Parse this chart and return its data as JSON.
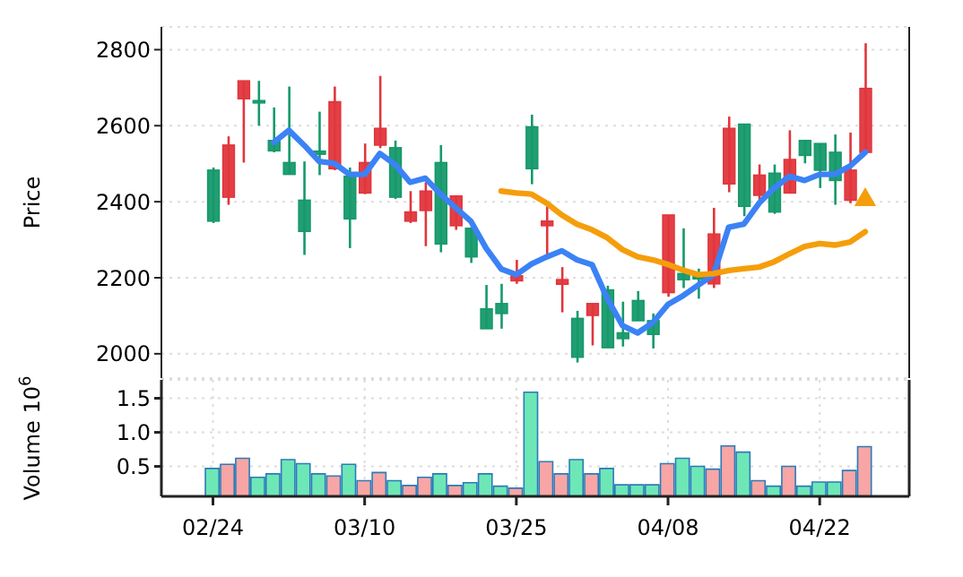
{
  "chart_data": [
    {
      "type": "candlestick",
      "ylabel": "Price",
      "categories": [
        null,
        null,
        null,
        null,
        null,
        null,
        null,
        null,
        null,
        null,
        null,
        null,
        null,
        null,
        null,
        null,
        null,
        null,
        null,
        null,
        null,
        null,
        null,
        null,
        null,
        null,
        null,
        null,
        null,
        null,
        null,
        null,
        null,
        null,
        null,
        null,
        null,
        null,
        null,
        null,
        null,
        null,
        null,
        null
      ],
      "ohlc": [
        [
          2349,
          2490,
          2344,
          2483
        ],
        [
          2549,
          2572,
          2392,
          2412
        ],
        [
          2718,
          2718,
          2503,
          2671
        ],
        [
          2660,
          2718,
          2600,
          2666
        ],
        [
          2534,
          2648,
          2530,
          2561
        ],
        [
          2472,
          2703,
          2472,
          2503
        ],
        [
          2322,
          2506,
          2260,
          2404
        ],
        [
          2525,
          2637,
          2470,
          2533
        ],
        [
          2663,
          2703,
          2483,
          2487
        ],
        [
          2355,
          2490,
          2278,
          2467
        ],
        [
          2503,
          2553,
          2420,
          2423
        ],
        [
          2593,
          2731,
          2541,
          2549
        ],
        [
          2412,
          2561,
          2407,
          2542
        ],
        [
          2373,
          2428,
          2344,
          2349
        ],
        [
          2428,
          2451,
          2283,
          2377
        ],
        [
          2289,
          2549,
          2267,
          2503
        ],
        [
          2415,
          2415,
          2326,
          2337
        ],
        [
          2255,
          2333,
          2239,
          2330
        ],
        [
          2066,
          2181,
          2066,
          2118
        ],
        [
          2106,
          2184,
          2066,
          2132
        ],
        [
          2205,
          2247,
          2184,
          2192
        ],
        [
          2487,
          2629,
          2446,
          2597
        ],
        [
          2349,
          2388,
          2255,
          2337
        ],
        [
          2195,
          2228,
          2109,
          2183
        ],
        [
          1991,
          2113,
          1977,
          2093
        ],
        [
          2132,
          2132,
          2022,
          2101
        ],
        [
          2016,
          2179,
          2016,
          2168
        ],
        [
          2040,
          2137,
          2019,
          2055
        ],
        [
          2087,
          2165,
          2087,
          2140
        ],
        [
          2051,
          2106,
          2014,
          2087
        ],
        [
          2365,
          2365,
          2150,
          2161
        ],
        [
          2195,
          2330,
          2173,
          2211
        ],
        [
          2197,
          2224,
          2145,
          2205
        ],
        [
          2315,
          2384,
          2173,
          2184
        ],
        [
          2593,
          2624,
          2425,
          2447
        ],
        [
          2388,
          2604,
          2362,
          2604
        ],
        [
          2470,
          2498,
          2404,
          2417
        ],
        [
          2373,
          2498,
          2368,
          2475
        ],
        [
          2511,
          2588,
          2423,
          2423
        ],
        [
          2522,
          2561,
          2501,
          2561
        ],
        [
          2483,
          2553,
          2436,
          2553
        ],
        [
          2456,
          2577,
          2392,
          2530
        ],
        [
          2483,
          2582,
          2396,
          2404
        ],
        [
          2698,
          2817,
          2525,
          2530
        ]
      ],
      "colors": [
        "#16996b",
        "#e0363c",
        "#e0363c",
        "#16996b",
        "#16996b",
        "#16996b",
        "#16996b",
        "#16996b",
        "#e0363c",
        "#16996b",
        "#e0363c",
        "#e0363c",
        "#16996b",
        "#e0363c",
        "#e0363c",
        "#16996b",
        "#e0363c",
        "#16996b",
        "#16996b",
        "#16996b",
        "#e0363c",
        "#16996b",
        "#e0363c",
        "#e0363c",
        "#16996b",
        "#e0363c",
        "#16996b",
        "#16996b",
        "#16996b",
        "#16996b",
        "#e0363c",
        "#16996b",
        "#16996b",
        "#e0363c",
        "#e0363c",
        "#16996b",
        "#e0363c",
        "#16996b",
        "#e0363c",
        "#16996b",
        "#16996b",
        "#16996b",
        "#e0363c",
        "#e0363c"
      ],
      "series": [
        {
          "type": "line",
          "color": "#3b82f6",
          "values": [
            null,
            null,
            null,
            null,
            2556,
            2588,
            2549,
            2506,
            2501,
            2472,
            2472,
            2527,
            2498,
            2451,
            2462,
            2420,
            2384,
            2349,
            2278,
            2223,
            2208,
            2236,
            2255,
            2271,
            2247,
            2234,
            2145,
            2074,
            2055,
            2082,
            2130,
            2153,
            2181,
            2208,
            2333,
            2341,
            2396,
            2436,
            2467,
            2456,
            2472,
            2472,
            2494,
            2530
          ]
        },
        {
          "type": "line",
          "color": "#f59e0b",
          "values": [
            null,
            null,
            null,
            null,
            null,
            null,
            null,
            null,
            null,
            null,
            null,
            null,
            null,
            null,
            null,
            null,
            null,
            null,
            null,
            2428,
            2423,
            2420,
            2396,
            2365,
            2341,
            2326,
            2305,
            2274,
            2255,
            2247,
            2235,
            2220,
            2208,
            2211,
            2219,
            2224,
            2228,
            2242,
            2263,
            2282,
            2290,
            2286,
            2294,
            2321
          ]
        },
        {
          "type": "scatter",
          "color": "#f59e0b",
          "marker": "triangle",
          "values": [
            null,
            null,
            null,
            null,
            null,
            null,
            null,
            null,
            null,
            null,
            null,
            null,
            null,
            null,
            null,
            null,
            null,
            null,
            null,
            null,
            null,
            null,
            null,
            null,
            null,
            null,
            null,
            null,
            null,
            null,
            null,
            null,
            null,
            null,
            null,
            null,
            null,
            null,
            null,
            null,
            null,
            null,
            null,
            2405
          ]
        }
      ],
      "ylim": [
        1936,
        2860
      ],
      "yticks": [
        2000,
        2200,
        2400,
        2600,
        2800
      ],
      "grid": true,
      "tick_labels": "y"
    },
    {
      "type": "bar",
      "ylabel": "Volume  10$^{6}$",
      "categories": [
        "02/24",
        null,
        null,
        null,
        null,
        null,
        null,
        null,
        null,
        null,
        "03/10",
        null,
        null,
        null,
        null,
        null,
        null,
        null,
        null,
        null,
        "03/25",
        null,
        null,
        null,
        null,
        null,
        null,
        null,
        null,
        null,
        "04/08",
        null,
        null,
        null,
        null,
        null,
        null,
        null,
        null,
        null,
        "04/22",
        null,
        null,
        null
      ],
      "values": [
        0.47,
        0.53,
        0.62,
        0.34,
        0.39,
        0.6,
        0.54,
        0.39,
        0.36,
        0.53,
        0.29,
        0.41,
        0.29,
        0.22,
        0.34,
        0.39,
        0.22,
        0.26,
        0.39,
        0.21,
        0.18,
        1.59,
        0.57,
        0.39,
        0.6,
        0.39,
        0.47,
        0.23,
        0.23,
        0.23,
        0.54,
        0.62,
        0.5,
        0.46,
        0.8,
        0.71,
        0.29,
        0.21,
        0.5,
        0.21,
        0.27,
        0.27,
        0.44,
        0.79
      ],
      "colors": [
        "#6ee7b7",
        "#f8a5a5",
        "#f8a5a5",
        "#6ee7b7",
        "#6ee7b7",
        "#6ee7b7",
        "#6ee7b7",
        "#6ee7b7",
        "#f8a5a5",
        "#6ee7b7",
        "#f8a5a5",
        "#f8a5a5",
        "#6ee7b7",
        "#f8a5a5",
        "#f8a5a5",
        "#6ee7b7",
        "#f8a5a5",
        "#6ee7b7",
        "#6ee7b7",
        "#6ee7b7",
        "#f8a5a5",
        "#6ee7b7",
        "#f8a5a5",
        "#f8a5a5",
        "#6ee7b7",
        "#f8a5a5",
        "#6ee7b7",
        "#6ee7b7",
        "#6ee7b7",
        "#6ee7b7",
        "#f8a5a5",
        "#6ee7b7",
        "#6ee7b7",
        "#f8a5a5",
        "#f8a5a5",
        "#6ee7b7",
        "#f8a5a5",
        "#6ee7b7",
        "#f8a5a5",
        "#6ee7b7",
        "#6ee7b7",
        "#6ee7b7",
        "#f8a5a5",
        "#f8a5a5"
      ],
      "ylim": [
        0.06,
        1.77
      ],
      "yticks": [
        0.5,
        {
          "value": 1,
          "label": "1.0"
        },
        1.5
      ],
      "grid": true
    }
  ]
}
